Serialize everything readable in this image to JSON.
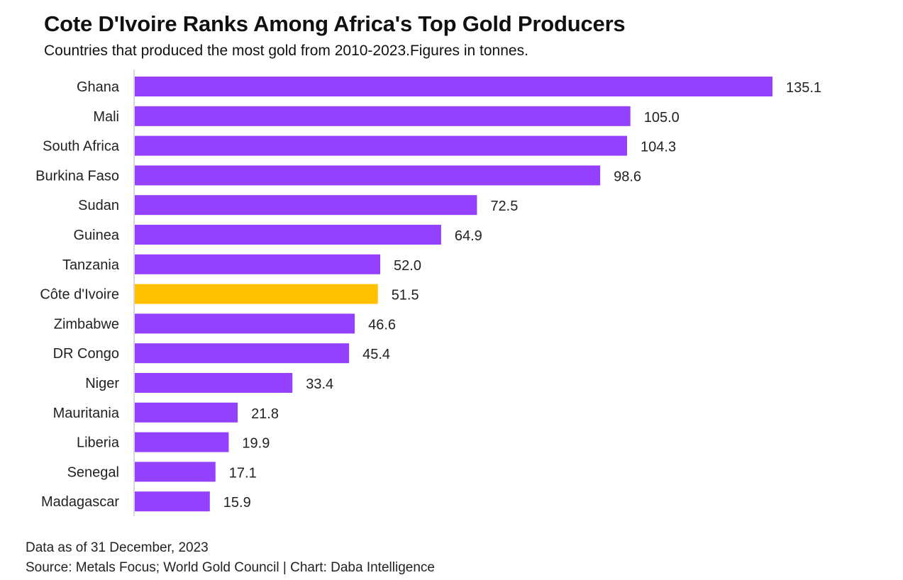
{
  "title": "Cote D'Ivoire Ranks Among Africa's Top Gold Producers",
  "subtitle": "Countries that produced the most gold from 2010-2023.Figures in tonnes.",
  "footer": {
    "note": "Data as of 31 December, 2023",
    "source": "Source: Metals Focus; World Gold Council | Chart: Daba Intelligence"
  },
  "colors": {
    "bar": "#9340FF",
    "highlight": "#FFC000",
    "axis": "#cccccc"
  },
  "chart_data": {
    "type": "bar",
    "orientation": "horizontal",
    "categories": [
      "Ghana",
      "Mali",
      "South Africa",
      "Burkina Faso",
      "Sudan",
      "Guinea",
      "Tanzania",
      "Côte d'Ivoire",
      "Zimbabwe",
      "DR Congo",
      "Niger",
      "Mauritania",
      "Liberia",
      "Senegal",
      "Madagascar"
    ],
    "values": [
      135.1,
      105.0,
      104.3,
      98.6,
      72.5,
      64.9,
      52.0,
      51.5,
      46.6,
      45.4,
      33.4,
      21.8,
      19.9,
      17.1,
      15.9
    ],
    "value_labels": [
      "135.1",
      "105.0",
      "104.3",
      "98.6",
      "72.5",
      "64.9",
      "52.0",
      "51.5",
      "46.6",
      "45.4",
      "33.4",
      "21.8",
      "19.9",
      "17.1",
      "15.9"
    ],
    "highlight": "Côte d'Ivoire",
    "xlim": [
      0,
      135.1
    ],
    "grid": false,
    "legend": "none"
  }
}
